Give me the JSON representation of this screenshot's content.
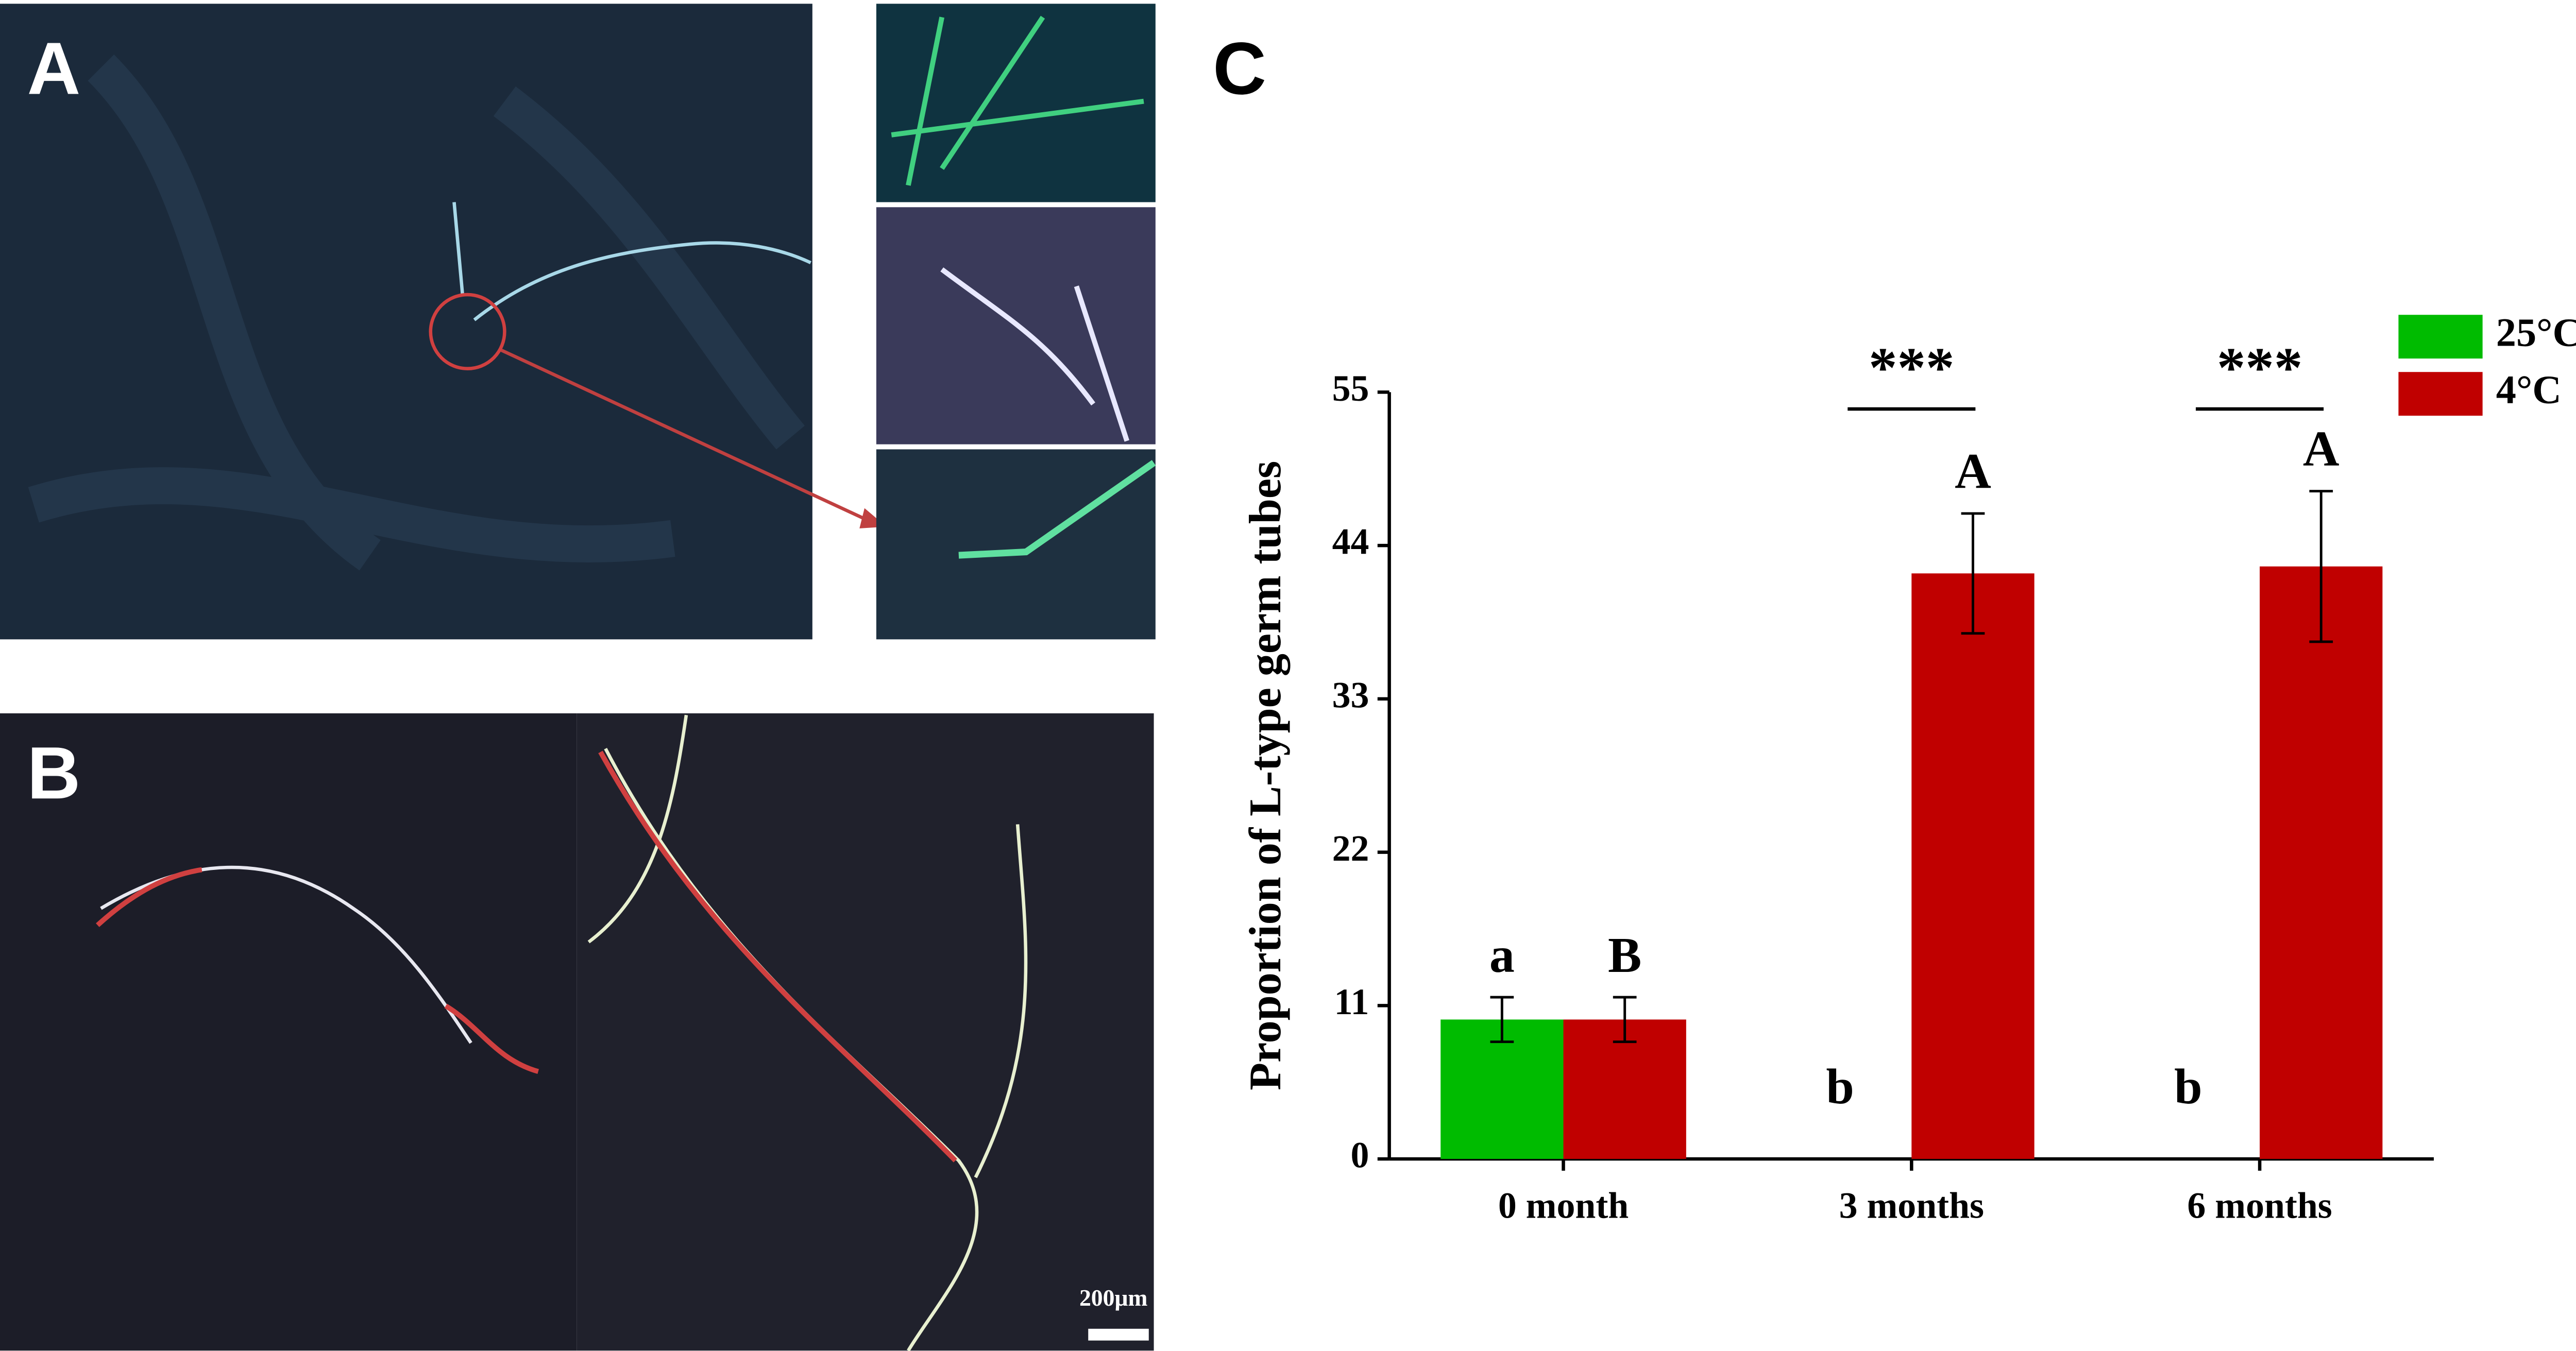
{
  "panels": {
    "labels": [
      "A",
      "B",
      "C"
    ],
    "scale_bar": "200μm"
  },
  "chart_data": {
    "type": "bar",
    "y_label": "Proportion of L-type germ tubes",
    "categories": [
      "0 month",
      "3 months",
      "6 months"
    ],
    "series": [
      {
        "name": "25°C",
        "color": "#00bb00",
        "values": [
          10,
          0,
          0
        ],
        "errors": [
          1.6,
          0,
          0
        ],
        "letters": [
          "a",
          "b",
          "b"
        ]
      },
      {
        "name": "4°C",
        "color": "#c00000",
        "values": [
          10,
          42,
          42.5
        ],
        "errors": [
          1.6,
          4.3,
          5.4
        ],
        "letters": [
          "B",
          "A",
          "A"
        ]
      }
    ],
    "annotations": [
      {
        "category": "3 months",
        "text": "***"
      },
      {
        "category": "6 months",
        "text": "***"
      }
    ],
    "ylim": [
      0,
      55
    ],
    "yticks": [
      0,
      11,
      22,
      33,
      44,
      55
    ],
    "grid": false,
    "legend": "top-right"
  }
}
